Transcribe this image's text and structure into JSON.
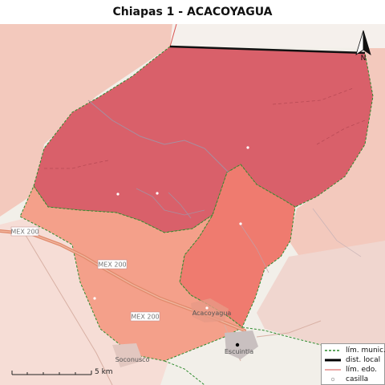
{
  "title": "Chiapas 1 - ACACOYAGUA",
  "north_label": "N",
  "scale_label": "5 km",
  "roads": [
    {
      "id": "mex200-a",
      "label": "MEX 200"
    },
    {
      "id": "mex200-b",
      "label": "MEX 200"
    },
    {
      "id": "mex200-c",
      "label": "MEX 200"
    }
  ],
  "places": [
    {
      "id": "acacoyagua",
      "label": "Acacoyagua"
    },
    {
      "id": "escuintla",
      "label": "Escuintla"
    },
    {
      "id": "soconusco",
      "label": "Soconusco"
    }
  ],
  "legend": [
    {
      "key": "lim_munic",
      "label": "lím. munic.",
      "color": "#2e8b2e",
      "style": "dashed"
    },
    {
      "key": "dist_local",
      "label": "dist. local",
      "color": "#000000",
      "style": "solid-thick"
    },
    {
      "key": "lim_edo",
      "label": "lím. edo.",
      "color": "#d9534f",
      "style": "solid-thin"
    },
    {
      "key": "casilla",
      "label": "casilla",
      "color": "#ffffff",
      "style": "point"
    }
  ],
  "colors": {
    "district_north": "#d9606a",
    "district_center": "#ef7b6f",
    "district_south": "#f4a08a",
    "surrounding": "#f3c9bd",
    "outside": "#f2efe9"
  }
}
